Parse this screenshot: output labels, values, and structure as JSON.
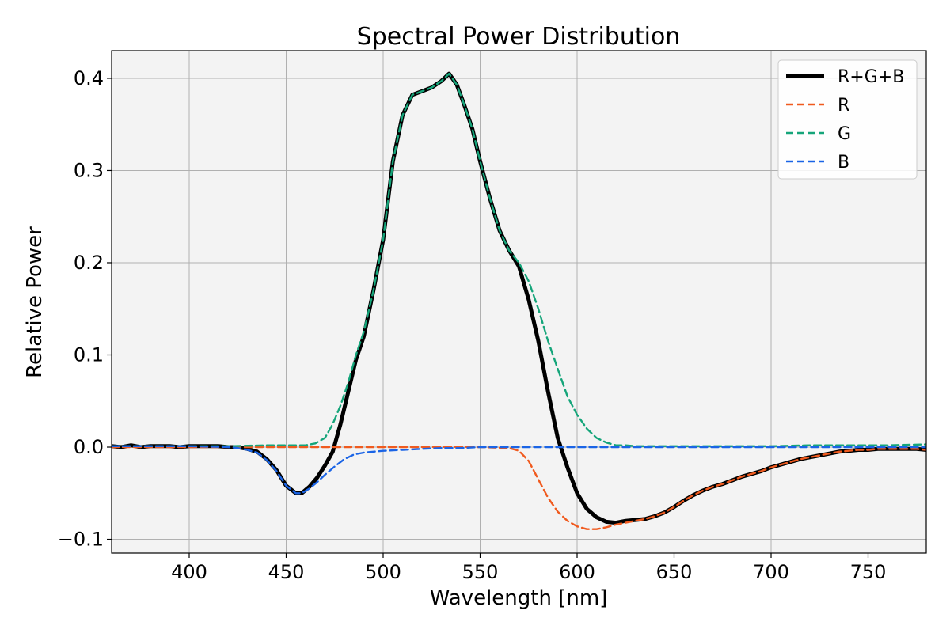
{
  "chart_data": {
    "type": "line",
    "title": "Spectral Power Distribution",
    "xlabel": "Wavelength [nm]",
    "ylabel": "Relative Power",
    "xlim": [
      360,
      780
    ],
    "ylim": [
      -0.115,
      0.43
    ],
    "xticks": [
      400,
      450,
      500,
      550,
      600,
      650,
      700,
      750
    ],
    "xtick_labels": [
      "400",
      "450",
      "500",
      "550",
      "600",
      "650",
      "700",
      "750"
    ],
    "yticks": [
      -0.1,
      0.0,
      0.1,
      0.2,
      0.3,
      0.4
    ],
    "ytick_labels": [
      "−0.1",
      "0.0",
      "0.1",
      "0.2",
      "0.3",
      "0.4"
    ],
    "grid": true,
    "legend_position": "top-right",
    "colors": {
      "axes_background": "#f3f3f3",
      "grid": "#b0b0b0"
    },
    "series": [
      {
        "name": "R+G+B",
        "color": "#000000",
        "style": "solid",
        "x": [
          360,
          365,
          370,
          375,
          380,
          385,
          390,
          395,
          400,
          405,
          410,
          415,
          420,
          425,
          430,
          435,
          440,
          445,
          450,
          455,
          458,
          462,
          466,
          470,
          474,
          478,
          482,
          486,
          490,
          495,
          500,
          505,
          510,
          515,
          520,
          525,
          530,
          534,
          538,
          542,
          546,
          550,
          555,
          560,
          565,
          570,
          575,
          580,
          585,
          590,
          595,
          600,
          605,
          610,
          615,
          620,
          625,
          630,
          635,
          640,
          645,
          650,
          655,
          660,
          665,
          670,
          675,
          680,
          685,
          690,
          695,
          700,
          705,
          710,
          715,
          720,
          725,
          730,
          735,
          740,
          745,
          750,
          755,
          760,
          765,
          770,
          775,
          780
        ],
        "values": [
          0.001,
          0.0,
          0.002,
          0.0,
          0.001,
          0.001,
          0.001,
          0.0,
          0.001,
          0.001,
          0.001,
          0.001,
          0.0,
          0.0,
          -0.002,
          -0.005,
          -0.013,
          -0.025,
          -0.042,
          -0.05,
          -0.05,
          -0.043,
          -0.033,
          -0.02,
          -0.005,
          0.025,
          0.06,
          0.095,
          0.12,
          0.17,
          0.225,
          0.31,
          0.36,
          0.382,
          0.386,
          0.39,
          0.397,
          0.405,
          0.393,
          0.37,
          0.345,
          0.31,
          0.27,
          0.235,
          0.213,
          0.196,
          0.16,
          0.115,
          0.06,
          0.01,
          -0.022,
          -0.05,
          -0.067,
          -0.076,
          -0.081,
          -0.082,
          -0.08,
          -0.079,
          -0.078,
          -0.075,
          -0.071,
          -0.065,
          -0.058,
          -0.052,
          -0.047,
          -0.043,
          -0.04,
          -0.036,
          -0.032,
          -0.029,
          -0.026,
          -0.022,
          -0.019,
          -0.016,
          -0.013,
          -0.011,
          -0.009,
          -0.007,
          -0.005,
          -0.004,
          -0.003,
          -0.003,
          -0.002,
          -0.002,
          -0.002,
          -0.002,
          -0.002,
          -0.003
        ]
      },
      {
        "name": "R",
        "color": "#f05a1e",
        "style": "dashed",
        "x": [
          360,
          400,
          450,
          500,
          550,
          565,
          570,
          575,
          580,
          585,
          590,
          595,
          600,
          605,
          610,
          615,
          620,
          625,
          630,
          635,
          640,
          645,
          650,
          655,
          660,
          665,
          670,
          675,
          680,
          685,
          690,
          695,
          700,
          705,
          710,
          715,
          720,
          725,
          730,
          735,
          740,
          745,
          750,
          755,
          760,
          765,
          770,
          775,
          780
        ],
        "values": [
          0.0,
          0.0,
          0.0,
          0.0,
          0.0,
          -0.001,
          -0.004,
          -0.015,
          -0.035,
          -0.055,
          -0.07,
          -0.08,
          -0.086,
          -0.089,
          -0.089,
          -0.087,
          -0.084,
          -0.082,
          -0.08,
          -0.078,
          -0.075,
          -0.071,
          -0.065,
          -0.058,
          -0.052,
          -0.047,
          -0.043,
          -0.04,
          -0.036,
          -0.032,
          -0.029,
          -0.026,
          -0.022,
          -0.019,
          -0.016,
          -0.013,
          -0.011,
          -0.009,
          -0.007,
          -0.005,
          -0.004,
          -0.003,
          -0.003,
          -0.002,
          -0.002,
          -0.002,
          -0.002,
          -0.002,
          -0.003
        ]
      },
      {
        "name": "G",
        "color": "#15a57a",
        "style": "dashed",
        "x": [
          360,
          380,
          400,
          420,
          440,
          460,
          465,
          470,
          474,
          478,
          482,
          486,
          490,
          495,
          500,
          505,
          510,
          515,
          520,
          525,
          530,
          534,
          538,
          542,
          546,
          550,
          555,
          560,
          565,
          570,
          575,
          580,
          585,
          590,
          595,
          600,
          605,
          610,
          615,
          620,
          625,
          630,
          640,
          650,
          660,
          680,
          700,
          720,
          740,
          760,
          780
        ],
        "values": [
          0.001,
          0.001,
          0.001,
          0.001,
          0.002,
          0.002,
          0.004,
          0.01,
          0.025,
          0.045,
          0.07,
          0.1,
          0.125,
          0.17,
          0.225,
          0.31,
          0.36,
          0.382,
          0.386,
          0.39,
          0.397,
          0.405,
          0.393,
          0.37,
          0.345,
          0.31,
          0.27,
          0.235,
          0.213,
          0.2,
          0.18,
          0.15,
          0.115,
          0.085,
          0.055,
          0.035,
          0.02,
          0.01,
          0.005,
          0.002,
          0.002,
          0.001,
          0.001,
          0.001,
          0.001,
          0.001,
          0.001,
          0.002,
          0.002,
          0.002,
          0.003
        ]
      },
      {
        "name": "B",
        "color": "#1a64e6",
        "style": "dashed",
        "x": [
          360,
          380,
          400,
          420,
          425,
          430,
          435,
          440,
          445,
          450,
          455,
          458,
          462,
          466,
          470,
          475,
          480,
          485,
          490,
          495,
          500,
          510,
          520,
          530,
          540,
          550,
          580,
          620,
          700,
          780
        ],
        "values": [
          0.001,
          0.001,
          0.001,
          0.0,
          -0.001,
          -0.003,
          -0.006,
          -0.014,
          -0.026,
          -0.042,
          -0.05,
          -0.05,
          -0.045,
          -0.038,
          -0.03,
          -0.021,
          -0.013,
          -0.008,
          -0.006,
          -0.005,
          -0.004,
          -0.003,
          -0.002,
          -0.001,
          -0.001,
          0.0,
          0.0,
          0.0,
          0.0,
          0.0
        ]
      }
    ]
  }
}
